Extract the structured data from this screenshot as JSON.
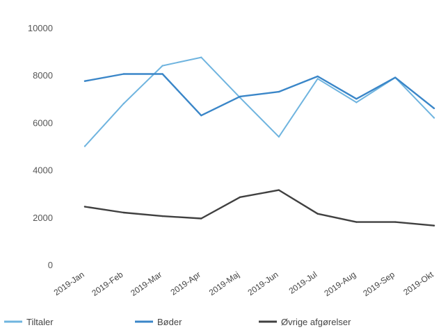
{
  "chart_data": {
    "type": "line",
    "categories": [
      "2019-Jan",
      "2019-Feb",
      "2019-Mar",
      "2019-Apr",
      "2019-Maj",
      "2019-Jun",
      "2019-Jul",
      "2019-Aug",
      "2019-Sep",
      "2019-Okt"
    ],
    "ylim": [
      0,
      10000
    ],
    "yticks": [
      0,
      2000,
      4000,
      6000,
      8000,
      10000
    ],
    "grid": false,
    "legend_position": "bottom",
    "series": [
      {
        "name": "Tiltaler",
        "color": "#6fb4df",
        "values": [
          5000,
          6800,
          8400,
          8750,
          7050,
          5400,
          7850,
          6850,
          7900,
          6200
        ]
      },
      {
        "name": "Bøder",
        "color": "#3a86c8",
        "values": [
          7750,
          8050,
          8050,
          6300,
          7100,
          7300,
          7950,
          7000,
          7900,
          6600
        ]
      },
      {
        "name": "Øvrige afgørelser",
        "color": "#404040",
        "values": [
          2450,
          2200,
          2050,
          1950,
          2850,
          3150,
          2150,
          1800,
          1800,
          1650
        ]
      }
    ]
  }
}
